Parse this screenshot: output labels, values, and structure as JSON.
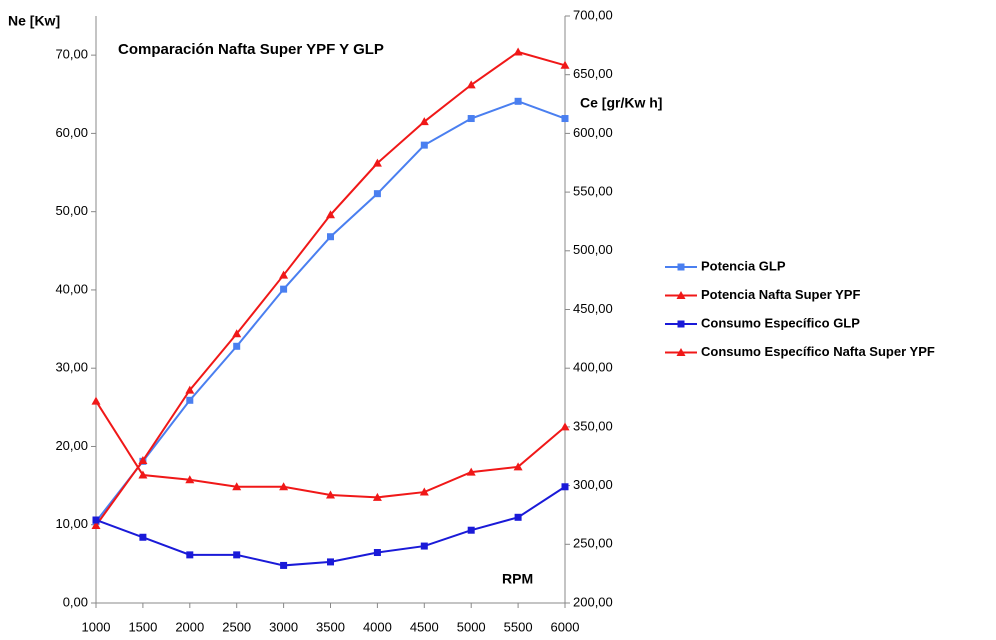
{
  "chart_data": {
    "type": "line",
    "title": "Comparación Nafta Super YPF Y GLP",
    "y_label": "Ne [Kw]",
    "y2_label": "Ce [gr/Kw h]",
    "x_label": "RPM",
    "x": [
      1000,
      1500,
      2000,
      2500,
      3000,
      3500,
      4000,
      4500,
      5000,
      5500,
      6000
    ],
    "xlim": [
      1000,
      6000
    ],
    "xticks": [
      1000,
      1500,
      2000,
      2500,
      3000,
      3500,
      4000,
      4500,
      5000,
      5500,
      6000
    ],
    "ylim": [
      0,
      75
    ],
    "yticks": [
      {
        "value": 0,
        "label": "0,00"
      },
      {
        "value": 10,
        "label": "10,00"
      },
      {
        "value": 20,
        "label": "20,00"
      },
      {
        "value": 30,
        "label": "30,00"
      },
      {
        "value": 40,
        "label": "40,00"
      },
      {
        "value": 50,
        "label": "50,00"
      },
      {
        "value": 60,
        "label": "60,00"
      },
      {
        "value": 70,
        "label": "70,00"
      }
    ],
    "y2lim": [
      200,
      700
    ],
    "y2ticks": [
      {
        "value": 200,
        "label": "200,00"
      },
      {
        "value": 250,
        "label": "250,00"
      },
      {
        "value": 300,
        "label": "300,00"
      },
      {
        "value": 350,
        "label": "350,00"
      },
      {
        "value": 400,
        "label": "400,00"
      },
      {
        "value": 450,
        "label": "450,00"
      },
      {
        "value": 500,
        "label": "500,00"
      },
      {
        "value": 550,
        "label": "550,00"
      },
      {
        "value": 600,
        "label": "600,00"
      },
      {
        "value": 650,
        "label": "650,00"
      },
      {
        "value": 700,
        "label": "700,00"
      }
    ],
    "grid": false,
    "legend": "right",
    "series": [
      {
        "name": "Potencia GLP",
        "color": "#4a7ff0",
        "marker": "square",
        "values": [
          10.4,
          18.1,
          25.9,
          32.8,
          40.1,
          46.8,
          52.3,
          58.5,
          61.9,
          64.1,
          61.9
        ]
      },
      {
        "name": "Potencia Nafta Super YPF",
        "color": "#f01818",
        "marker": "triangle",
        "values": [
          9.9,
          18.2,
          27.2,
          34.4,
          41.9,
          49.6,
          56.2,
          61.5,
          66.2,
          70.4,
          68.7
        ]
      },
      {
        "name": "Consumo Específico GLP",
        "color": "#1a1ad8",
        "marker": "square",
        "axis": "y2",
        "values": [
          270.7,
          256,
          241,
          241,
          232,
          235,
          243,
          248.5,
          262,
          273,
          299
        ]
      },
      {
        "name": "Consumo Específico Nafta Super YPF",
        "color": "#f01818",
        "marker": "triangle",
        "axis": "y2",
        "values": [
          372,
          309,
          305,
          299,
          299,
          292,
          290,
          294.5,
          311.5,
          316,
          350
        ]
      }
    ]
  }
}
